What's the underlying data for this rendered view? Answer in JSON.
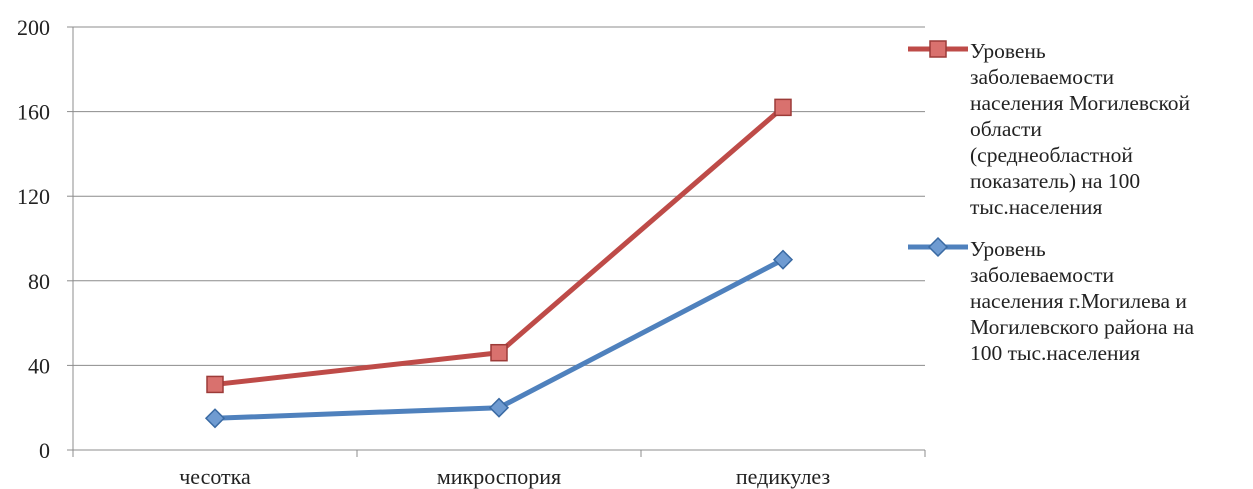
{
  "chart_data": {
    "type": "line",
    "categories": [
      "чесотка",
      "микроспория",
      "педикулез"
    ],
    "series": [
      {
        "name": "Уровень заболеваемости населения Могилевской области (среднеобластной показатель) на 100 тыс.населения",
        "values": [
          31,
          46,
          162
        ],
        "color": "#be4b48",
        "marker": "square"
      },
      {
        "name": "Уровень заболеваемости населения г.Могилева и Могилевского района на 100 тыс.населения",
        "values": [
          15,
          20,
          90
        ],
        "color": "#4f81bd",
        "marker": "diamond"
      }
    ],
    "yticks": [
      "0",
      "40",
      "80",
      "120",
      "160",
      "200"
    ],
    "ylim": [
      0,
      200
    ],
    "grid": true,
    "legend_position": "right"
  },
  "legend": {
    "items": [
      {
        "lines": [
          "Уровень",
          "заболеваемости",
          "населения Могилевской",
          "области",
          "(среднеобластной",
          "показатель) на 100",
          "тыс.населения"
        ]
      },
      {
        "lines": [
          "Уровень",
          "заболеваемости",
          "населения г.Могилева и",
          "Могилевского района на",
          "100 тыс.населения"
        ]
      }
    ]
  }
}
